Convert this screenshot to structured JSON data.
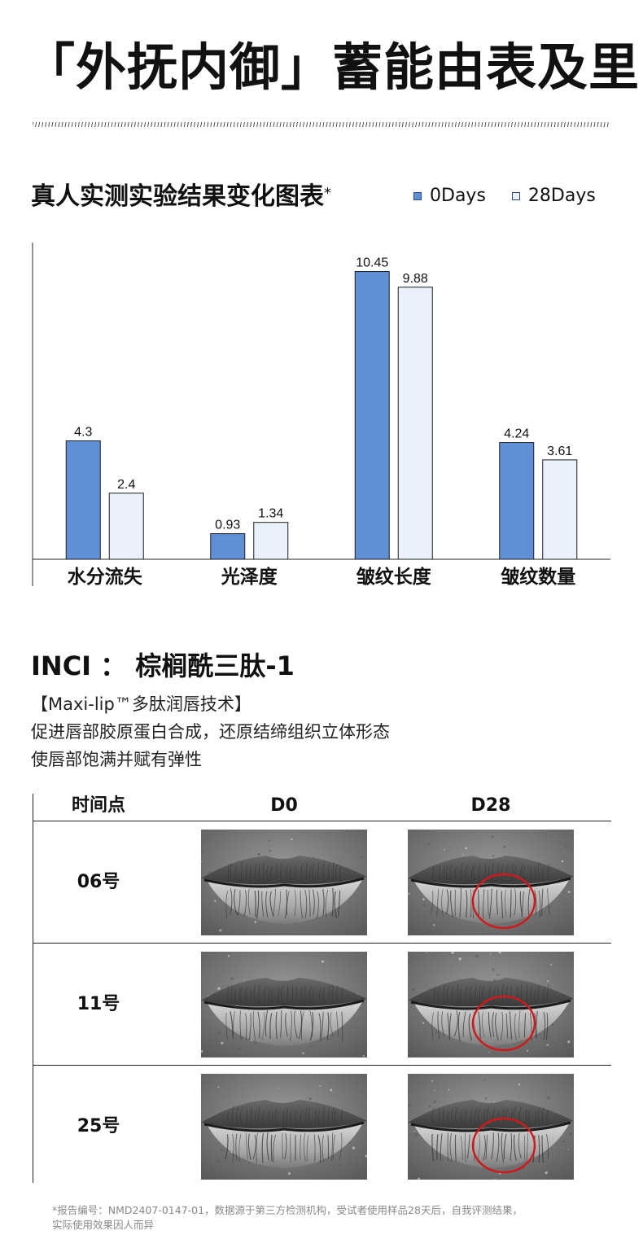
{
  "headline": "「外抚内御」蓄能由表及里",
  "chart_title": "真人实测实验结果变化图表",
  "chart_title_mark": "*",
  "chart_data": {
    "type": "bar",
    "categories": [
      "水分流失",
      "光泽度",
      "皱纹长度",
      "皱纹数量"
    ],
    "series": [
      {
        "name": "0Days",
        "values": [
          4.3,
          0.93,
          10.45,
          4.24
        ],
        "labels": [
          "4.3",
          "0.93",
          "10.45",
          "4.24"
        ],
        "color": "#5f8fd4"
      },
      {
        "name": "28Days",
        "values": [
          2.4,
          1.34,
          9.88,
          3.61
        ],
        "labels": [
          "2.4",
          "1.34",
          "9.88",
          "3.61"
        ],
        "color": "#eaf1fb"
      }
    ],
    "ylim": [
      0,
      11.5
    ],
    "grid": false,
    "legend_position": "top-right"
  },
  "inci": "INCI ： 棕榈酰三肽-1",
  "desc_lines": [
    "【Maxi-lip™多肽润唇技术】",
    "促进唇部胶原蛋白合成，还原结缔组织立体形态",
    "使唇部饱满并赋有弹性"
  ],
  "table": {
    "headers": [
      "时间点",
      "D0",
      "D28"
    ],
    "rows": [
      {
        "label": "06号"
      },
      {
        "label": "11号"
      },
      {
        "label": "25号"
      }
    ],
    "circle_color": "#d0191b"
  },
  "footnote_lines": [
    "*报告编号：NMD2407-0147-01，数据源于第三方检测机构，受试者使用样品28天后，自我评测结果，",
    "实际使用效果因人而异"
  ]
}
